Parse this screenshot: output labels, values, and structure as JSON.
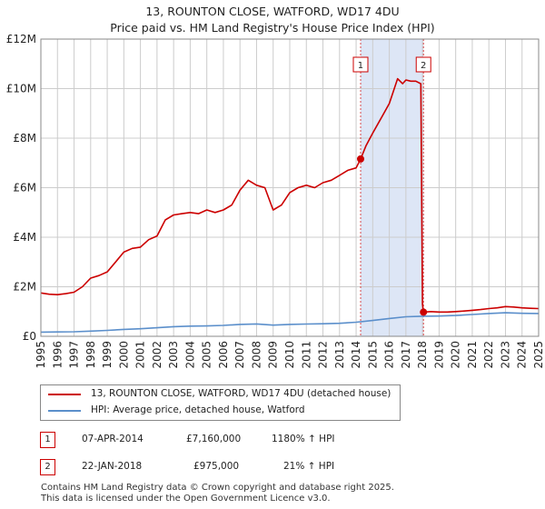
{
  "title": {
    "line1": "13, ROUNTON CLOSE, WATFORD, WD17 4DU",
    "line2": "Price paid vs. HM Land Registry's House Price Index (HPI)"
  },
  "colors": {
    "property_line": "#cc0000",
    "hpi_line": "#5b8fcb",
    "shade": "#dde6f6",
    "grid": "#cccccc",
    "marker_box": "#cc0000"
  },
  "legend": {
    "property_label": "13, ROUNTON CLOSE, WATFORD, WD17 4DU (detached house)",
    "hpi_label": "HPI: Average price, detached house, Watford"
  },
  "sales": [
    {
      "badge": "1",
      "date": "07-APR-2014",
      "price": "£7,160,000",
      "hpi_change": "1180% ↑ HPI"
    },
    {
      "badge": "2",
      "date": "22-JAN-2018",
      "price": "£975,000",
      "hpi_change": "21% ↑ HPI"
    }
  ],
  "footer": {
    "line1": "Contains HM Land Registry data © Crown copyright and database right 2025.",
    "line2": "This data is licensed under the Open Government Licence v3.0."
  },
  "chart_data": {
    "type": "line",
    "title": "13, ROUNTON CLOSE, WATFORD, WD17 4DU — Price paid vs. HM Land Registry's House Price Index (HPI)",
    "xlabel": "",
    "ylabel": "",
    "xlim": [
      1995,
      2025
    ],
    "ylim": [
      0,
      12000000
    ],
    "x_ticks": [
      1995,
      1996,
      1997,
      1998,
      1999,
      2000,
      2001,
      2002,
      2003,
      2004,
      2005,
      2006,
      2007,
      2008,
      2009,
      2010,
      2011,
      2012,
      2013,
      2014,
      2015,
      2016,
      2017,
      2018,
      2019,
      2020,
      2021,
      2022,
      2023,
      2024,
      2025
    ],
    "y_ticks": [
      {
        "value": 0,
        "label": "£0"
      },
      {
        "value": 2000000,
        "label": "£2M"
      },
      {
        "value": 4000000,
        "label": "£4M"
      },
      {
        "value": 6000000,
        "label": "£6M"
      },
      {
        "value": 8000000,
        "label": "£8M"
      },
      {
        "value": 10000000,
        "label": "£10M"
      },
      {
        "value": 12000000,
        "label": "£12M"
      }
    ],
    "grid": true,
    "shaded_range": [
      2014.27,
      2018.06
    ],
    "sale_markers": [
      {
        "label": "1",
        "x": 2014.27,
        "y": 7160000
      },
      {
        "label": "2",
        "x": 2018.06,
        "y": 975000
      }
    ],
    "series": [
      {
        "name": "13, ROUNTON CLOSE, WATFORD, WD17 4DU (detached house)",
        "color": "#cc0000",
        "x": [
          1995.0,
          1995.5,
          1996.0,
          1996.5,
          1997.0,
          1997.5,
          1998.0,
          1998.5,
          1999.0,
          1999.5,
          2000.0,
          2000.5,
          2001.0,
          2001.5,
          2002.0,
          2002.5,
          2003.0,
          2003.5,
          2004.0,
          2004.5,
          2005.0,
          2005.5,
          2006.0,
          2006.5,
          2007.0,
          2007.5,
          2008.0,
          2008.5,
          2009.0,
          2009.5,
          2010.0,
          2010.5,
          2011.0,
          2011.5,
          2012.0,
          2012.5,
          2013.0,
          2013.5,
          2014.0,
          2014.27,
          2014.6,
          2015.0,
          2015.5,
          2016.0,
          2016.5,
          2016.8,
          2017.0,
          2017.3,
          2017.6,
          2017.9,
          2018.0,
          2018.06,
          2018.5,
          2019.0,
          2019.5,
          2020.0,
          2020.5,
          2021.0,
          2021.5,
          2022.0,
          2022.5,
          2023.0,
          2023.5,
          2024.0,
          2024.5,
          2025.0
        ],
        "y": [
          1750000,
          1700000,
          1680000,
          1720000,
          1780000,
          2000000,
          2350000,
          2450000,
          2600000,
          3000000,
          3400000,
          3550000,
          3600000,
          3900000,
          4050000,
          4700000,
          4900000,
          4950000,
          5000000,
          4950000,
          5100000,
          5000000,
          5100000,
          5300000,
          5900000,
          6300000,
          6100000,
          6000000,
          5100000,
          5300000,
          5800000,
          6000000,
          6100000,
          6000000,
          6200000,
          6300000,
          6500000,
          6700000,
          6800000,
          7160000,
          7700000,
          8200000,
          8800000,
          9400000,
          10400000,
          10200000,
          10350000,
          10300000,
          10300000,
          10200000,
          1300000,
          975000,
          1000000,
          980000,
          980000,
          1000000,
          1020000,
          1050000,
          1080000,
          1120000,
          1150000,
          1200000,
          1180000,
          1150000,
          1130000,
          1120000
        ]
      },
      {
        "name": "HPI: Average price, detached house, Watford",
        "color": "#5b8fcb",
        "x": [
          1995,
          1996,
          1997,
          1998,
          1999,
          2000,
          2001,
          2002,
          2003,
          2004,
          2005,
          2006,
          2007,
          2008,
          2009,
          2010,
          2011,
          2012,
          2013,
          2014,
          2015,
          2016,
          2017,
          2018,
          2019,
          2020,
          2021,
          2022,
          2023,
          2024,
          2025
        ],
        "y": [
          170000,
          175000,
          185000,
          210000,
          240000,
          280000,
          305000,
          345000,
          390000,
          410000,
          420000,
          440000,
          480000,
          500000,
          450000,
          480000,
          495000,
          505000,
          525000,
          570000,
          640000,
          720000,
          790000,
          810000,
          820000,
          840000,
          880000,
          920000,
          950000,
          930000,
          920000
        ]
      }
    ]
  }
}
